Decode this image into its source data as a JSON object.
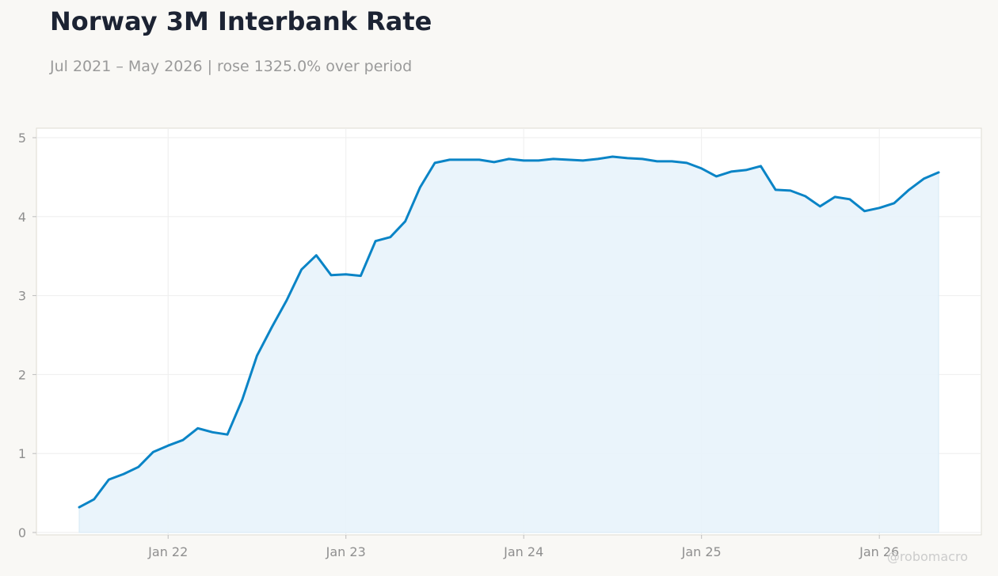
{
  "title": "Norway 3M Interbank Rate",
  "subtitle": "Jul 2021 – May 2026 | rose 1325.0% over period",
  "watermark": "@robomacro",
  "colors": {
    "line": "#0a84c6",
    "fill": "#e8f3fb",
    "grid": "#eeeeee"
  },
  "chart_data": {
    "type": "area",
    "grid": true,
    "legend": "none",
    "ylim": [
      0,
      5
    ],
    "yticks": [
      0,
      1,
      2,
      3,
      4,
      5
    ],
    "xticks": [
      {
        "date": "2022-01",
        "label": "Jan 22"
      },
      {
        "date": "2023-01",
        "label": "Jan 23"
      },
      {
        "date": "2024-01",
        "label": "Jan 24"
      },
      {
        "date": "2025-01",
        "label": "Jan 25"
      },
      {
        "date": "2026-01",
        "label": "Jan 26"
      }
    ],
    "x": [
      "2021-07",
      "2021-08",
      "2021-09",
      "2021-10",
      "2021-11",
      "2021-12",
      "2022-01",
      "2022-02",
      "2022-03",
      "2022-04",
      "2022-05",
      "2022-06",
      "2022-07",
      "2022-08",
      "2022-09",
      "2022-10",
      "2022-11",
      "2022-12",
      "2023-01",
      "2023-02",
      "2023-03",
      "2023-04",
      "2023-05",
      "2023-06",
      "2023-07",
      "2023-08",
      "2023-09",
      "2023-10",
      "2023-11",
      "2023-12",
      "2024-01",
      "2024-02",
      "2024-03",
      "2024-04",
      "2024-05",
      "2024-06",
      "2024-07",
      "2024-08",
      "2024-09",
      "2024-10",
      "2024-11",
      "2024-12",
      "2025-01",
      "2025-02",
      "2025-03",
      "2025-04",
      "2025-05",
      "2025-06",
      "2025-07",
      "2025-08",
      "2025-09",
      "2025-10",
      "2025-11",
      "2025-12",
      "2026-01",
      "2026-02",
      "2026-03",
      "2026-04",
      "2026-05"
    ],
    "values": [
      0.32,
      0.42,
      0.67,
      0.74,
      0.83,
      1.02,
      1.1,
      1.17,
      1.32,
      1.27,
      1.24,
      1.68,
      2.24,
      2.6,
      2.94,
      3.33,
      3.51,
      3.26,
      3.27,
      3.25,
      3.69,
      3.74,
      3.94,
      4.37,
      4.68,
      4.72,
      4.72,
      4.72,
      4.69,
      4.73,
      4.71,
      4.71,
      4.73,
      4.72,
      4.71,
      4.73,
      4.76,
      4.74,
      4.73,
      4.7,
      4.7,
      4.68,
      4.61,
      4.51,
      4.57,
      4.59,
      4.64,
      4.34,
      4.33,
      4.26,
      4.13,
      4.25,
      4.22,
      4.07,
      4.11,
      4.17,
      4.34,
      4.48,
      4.56
    ]
  }
}
